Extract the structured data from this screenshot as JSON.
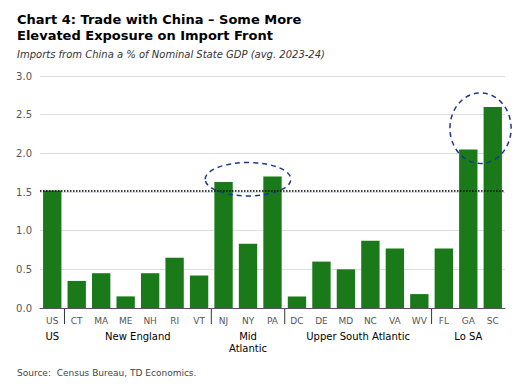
{
  "chart_data": {
    "type": "bar",
    "title": "Chart 4: Trade with China – Some More\nElevated Exposure on Import Front",
    "subtitle": "Imports from China a % of Nominal State GDP (avg. 2023-24)",
    "annotations": [
      "Source:  Census Bureau, TD Economics."
    ],
    "categories": [
      "US",
      "CT",
      "MA",
      "ME",
      "NH",
      "RI",
      "VT",
      "NJ",
      "NY",
      "PA",
      "DC",
      "DE",
      "MD",
      "NC",
      "VA",
      "WV",
      "FL",
      "GA",
      "SC"
    ],
    "values": [
      1.52,
      0.35,
      0.45,
      0.15,
      0.45,
      0.65,
      0.42,
      1.63,
      0.83,
      1.7,
      0.15,
      0.6,
      0.5,
      0.87,
      0.77,
      0.18,
      0.77,
      2.05,
      2.6
    ],
    "color": "#1a7a1a",
    "reference_line": 1.52,
    "ylim": [
      0,
      3.0
    ],
    "yticks": [
      {
        "value": 0.0,
        "label": "0.0"
      },
      0.5,
      {
        "value": 1.0,
        "label": "1.0"
      },
      1.5,
      {
        "value": 2.0,
        "label": "2.0"
      },
      2.5,
      {
        "value": 3.0,
        "label": "3.0"
      }
    ],
    "grid": true,
    "groups": [
      {
        "label": "US",
        "members": [
          "US"
        ]
      },
      {
        "label": "New England",
        "members": [
          "CT",
          "MA",
          "ME",
          "NH",
          "RI",
          "VT"
        ]
      },
      {
        "label": "Mid\nAtlantic",
        "members": [
          "NJ",
          "NY",
          "PA"
        ]
      },
      {
        "label": "Upper South Atlantic",
        "members": [
          "DC",
          "DE",
          "MD",
          "NC",
          "VA",
          "WV"
        ]
      },
      {
        "label": "Lo SA",
        "members": [
          "FL",
          "GA",
          "SC"
        ]
      }
    ],
    "highlights": [
      {
        "members": [
          "NJ",
          "NY",
          "PA"
        ],
        "color": "#1a3a8a"
      },
      {
        "members": [
          "GA",
          "SC"
        ],
        "color": "#1a3a8a"
      }
    ]
  }
}
